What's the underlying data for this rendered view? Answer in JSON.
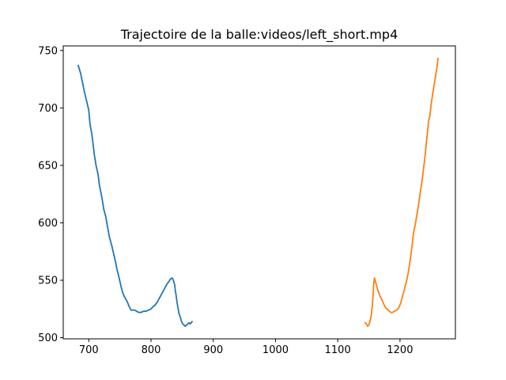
{
  "chart_data": {
    "type": "line",
    "title": "Trajectoire de la balle:videos/left_short.mp4",
    "xlabel": "",
    "ylabel": "",
    "xlim": [
      659,
      1289
    ],
    "ylim": [
      499,
      754
    ],
    "xticks": [
      700,
      800,
      900,
      1000,
      1100,
      1200
    ],
    "yticks": [
      500,
      550,
      600,
      650,
      700,
      750
    ],
    "grid": false,
    "colors": [
      "#1f77b4",
      "#ff7f0e"
    ],
    "series": [
      {
        "x": [
          683,
          687,
          690,
          693,
          697,
          700,
          702,
          705,
          707,
          709,
          712,
          715,
          717,
          720,
          722,
          724,
          727,
          729,
          733,
          737,
          740,
          743,
          745,
          747,
          750,
          753,
          756,
          759,
          762,
          765,
          768,
          771,
          774,
          777,
          780,
          784,
          788,
          792,
          796,
          800,
          803,
          806,
          810,
          814,
          818,
          822,
          826,
          829,
          831,
          834,
          836,
          838,
          839,
          840,
          841,
          842,
          843,
          844,
          845,
          847,
          849,
          851,
          853,
          855,
          857,
          859,
          861,
          863,
          866
        ],
        "y": [
          737,
          730,
          722,
          714,
          705,
          698,
          686,
          677,
          668,
          659,
          649,
          642,
          633,
          625,
          619,
          612,
          606,
          600,
          588,
          580,
          573,
          566,
          560,
          556,
          549,
          542,
          537,
          534,
          531,
          527,
          524,
          524,
          524,
          523,
          522,
          522,
          523,
          523,
          524,
          525,
          527,
          528,
          531,
          535,
          539,
          543,
          547,
          549,
          551,
          552,
          550,
          546,
          541,
          538,
          534,
          530,
          527,
          524,
          521,
          518,
          514,
          512,
          511,
          510,
          511,
          512,
          513,
          512,
          514
        ]
      },
      {
        "x": [
          1144,
          1146,
          1148,
          1150,
          1151,
          1152,
          1153,
          1154,
          1155,
          1156,
          1157,
          1158,
          1159,
          1160,
          1162,
          1164,
          1166,
          1168,
          1171,
          1174,
          1177,
          1181,
          1185,
          1188,
          1191,
          1195,
          1198,
          1201,
          1204,
          1207,
          1210,
          1213,
          1216,
          1218,
          1220,
          1222,
          1225,
          1228,
          1231,
          1233,
          1236,
          1238,
          1240,
          1242,
          1244,
          1246,
          1248,
          1250,
          1253,
          1256,
          1259,
          1261
        ],
        "y": [
          513,
          512,
          510,
          511,
          513,
          515,
          517,
          520,
          525,
          531,
          540,
          548,
          552,
          550,
          546,
          542,
          539,
          536,
          533,
          529,
          526,
          524,
          522,
          522,
          523,
          524,
          526,
          530,
          536,
          542,
          548,
          556,
          566,
          574,
          583,
          592,
          600,
          610,
          620,
          628,
          639,
          648,
          657,
          668,
          678,
          689,
          693,
          703,
          714,
          724,
          734,
          743
        ]
      }
    ]
  }
}
